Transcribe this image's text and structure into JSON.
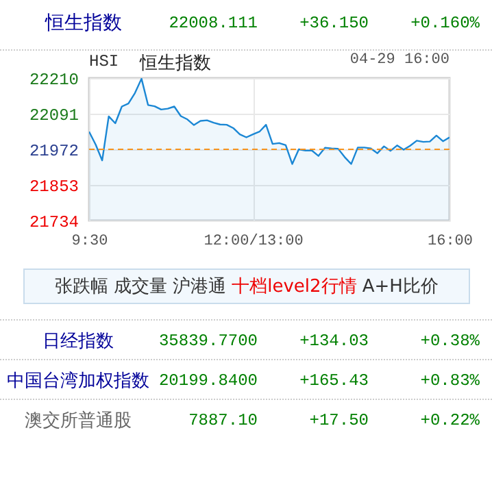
{
  "chart_data": [
    {
      "type": "other",
      "annotations": [
        "恒生指数",
        "22008.111",
        "+36.150",
        "+0.160%"
      ]
    },
    {
      "type": "area",
      "title": "恒生指数",
      "annotations": [
        "HSI",
        "04-29 16:00"
      ],
      "categories": [
        "9:30",
        null,
        null,
        null,
        null,
        null,
        null,
        null,
        null,
        null,
        null,
        null,
        null,
        null,
        null,
        null,
        null,
        null,
        null,
        null,
        null,
        null,
        null,
        null,
        null,
        "12:00/13:00",
        null,
        null,
        null,
        null,
        null,
        null,
        null,
        null,
        null,
        null,
        null,
        null,
        null,
        null,
        null,
        null,
        null,
        null,
        null,
        null,
        null,
        null,
        null,
        null,
        null,
        null,
        null,
        null,
        null,
        "16:00"
      ],
      "ylim": [
        21734,
        22210
      ],
      "yticks": [
        21734,
        21853,
        21972,
        22091,
        22210
      ],
      "grid": true,
      "ref_lines": [
        {
          "axis": "y",
          "value": 21972,
          "color": "#f7931e",
          "line_style": "dashed"
        }
      ],
      "series": [
        {
          "color": "#1b87d4",
          "values": [
            22031,
            21988,
            21935,
            22082,
            22059,
            22115,
            22125,
            22160,
            22208,
            22120,
            22116,
            22105,
            22108,
            22115,
            22083,
            22072,
            22053,
            22067,
            22069,
            22061,
            22055,
            22054,
            22043,
            22022,
            22012,
            22022,
            22031,
            22054,
            21990,
            21993,
            21986,
            21923,
            21972,
            21968,
            21968,
            21950,
            21977,
            21975,
            21974,
            21946,
            21923,
            21978,
            21978,
            21975,
            21959,
            21982,
            21967,
            21985,
            21971,
            21984,
            22001,
            21997,
            21998,
            22018,
            21999,
            22012
          ]
        }
      ]
    },
    {
      "type": "other",
      "annotations": [
        "张跌幅",
        "成交量",
        "沪港通",
        "十档level2行情",
        "A+H比价"
      ]
    },
    {
      "type": "other",
      "annotations": [
        "日经指数",
        "35839.7700",
        "+134.03",
        "+0.38%",
        "中国台湾加权指数",
        "20199.8400",
        "+165.43",
        "+0.83%",
        "澳交所普通股",
        "7887.10",
        "+17.50",
        "+0.22%"
      ]
    }
  ]
}
